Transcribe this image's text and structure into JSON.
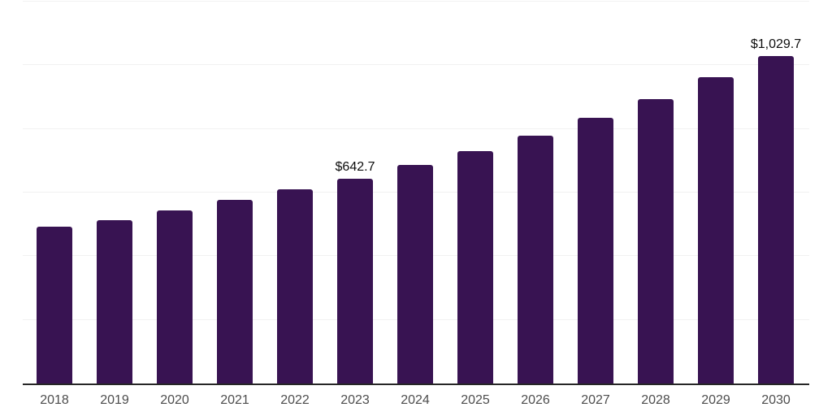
{
  "chart_data": {
    "type": "bar",
    "title": "",
    "xlabel": "",
    "ylabel": "",
    "categories": [
      "2018",
      "2019",
      "2020",
      "2021",
      "2022",
      "2023",
      "2024",
      "2025",
      "2026",
      "2027",
      "2028",
      "2029",
      "2030"
    ],
    "values": [
      492,
      513,
      544,
      578,
      610,
      642.7,
      687,
      730,
      778,
      836,
      893,
      962,
      1029.7
    ],
    "annotations": [
      {
        "category": "2023",
        "text": "$642.7"
      },
      {
        "category": "2030",
        "text": "$1,029.7"
      }
    ],
    "ylim": [
      0,
      1200
    ],
    "gridline_step": 200,
    "grid": true,
    "legend": false,
    "colors": {
      "bar": "#381352",
      "axis_line": "#262626",
      "gridline": "#f1f1f1",
      "tick_label": "#4d4d4d",
      "annotation": "#0d0d0d",
      "background": "#ffffff"
    }
  }
}
